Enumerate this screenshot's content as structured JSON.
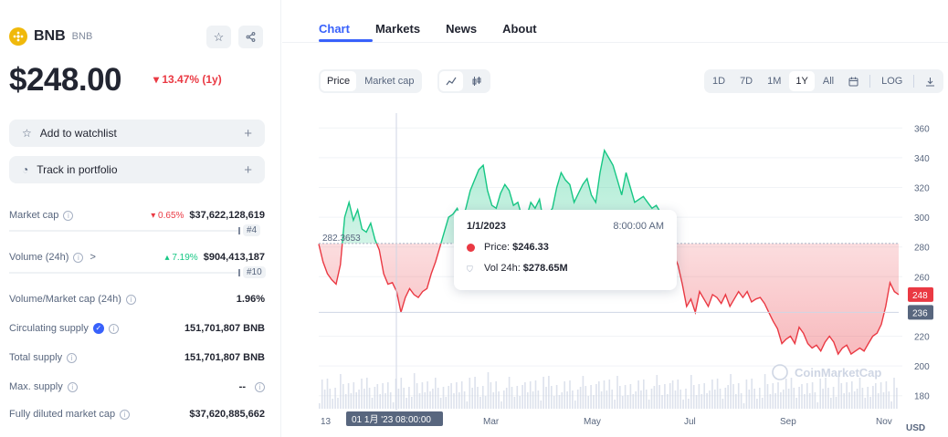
{
  "coin": {
    "name": "BNB",
    "symbol": "BNB",
    "price": "$248.00",
    "change": "▾ 13.47% (1y)"
  },
  "actions": {
    "watchlist": "Add to watchlist",
    "portfolio": "Track in portfolio",
    "plus": "+"
  },
  "stats": {
    "market_cap": {
      "label": "Market cap",
      "change": "▾ 0.65%",
      "value": "$37,622,128,619",
      "rank": "#4"
    },
    "volume": {
      "label": "Volume (24h)",
      "arrow": ">",
      "change": "▴ 7.19%",
      "value": "$904,413,187",
      "rank": "#10"
    },
    "vol_mcap": {
      "label": "Volume/Market cap (24h)",
      "value": "1.96%"
    },
    "circulating": {
      "label": "Circulating supply",
      "value": "151,701,807 BNB"
    },
    "total": {
      "label": "Total supply",
      "value": "151,701,807 BNB"
    },
    "max": {
      "label": "Max. supply",
      "value": "--"
    },
    "fdmc": {
      "label": "Fully diluted market cap",
      "value": "$37,620,885,662"
    }
  },
  "tabs": [
    "Chart",
    "Markets",
    "News",
    "About"
  ],
  "toolbar": {
    "price_btn": "Price",
    "mcap_btn": "Market cap",
    "ranges": [
      "1D",
      "7D",
      "1M",
      "1Y",
      "All"
    ],
    "selected_range": "1Y",
    "log": "LOG"
  },
  "tooltip": {
    "date": "1/1/2023",
    "time": "8:00:00 AM",
    "price_label": "Price:",
    "price": "$246.33",
    "vol_label": "Vol 24h:",
    "vol": "$278.65M"
  },
  "colors": {
    "accent": "#3861fb",
    "up": "#16c784",
    "down": "#ea3943"
  },
  "chart_data": {
    "type": "line",
    "y_ticks": [
      "360",
      "340",
      "320",
      "300",
      "280",
      "260",
      "220",
      "200",
      "180"
    ],
    "x_ticks": [
      "13",
      "Mar",
      "May",
      "Jul",
      "Sep",
      "Nov"
    ],
    "ylim": [
      170,
      370
    ],
    "baseline": 282.3653,
    "baseline_label": "282.3653",
    "current_price_label": "248",
    "current_line_label": "236",
    "current_price": 248,
    "current_line": 236,
    "crosshair_label": "01 1月 '23  08:00:00",
    "currency": "USD",
    "watermark": "CoinMarketCap",
    "series": [
      {
        "values": [
          282,
          270,
          262,
          258,
          255,
          268,
          300,
          310,
          298,
          305,
          292,
          290,
          296,
          285,
          278,
          262,
          255,
          256,
          250,
          236,
          246,
          252,
          248,
          246,
          250,
          252,
          262,
          270,
          280,
          290,
          300,
          302,
          306,
          298,
          306,
          318,
          325,
          332,
          335,
          318,
          308,
          306,
          316,
          322,
          318,
          308,
          310,
          300,
          300,
          310,
          306,
          312,
          296,
          302,
          306,
          320,
          330,
          325,
          322,
          310,
          316,
          322,
          326,
          315,
          310,
          330,
          345,
          340,
          335,
          325,
          315,
          330,
          320,
          310,
          312,
          314,
          310,
          306,
          308,
          303,
          298,
          292,
          275,
          268,
          255,
          240,
          245,
          236,
          250,
          245,
          240,
          248,
          246,
          242,
          248,
          240,
          245,
          250,
          246,
          250,
          243,
          245,
          246,
          242,
          236,
          230,
          225,
          215,
          218,
          220,
          215,
          226,
          222,
          215,
          212,
          214,
          210,
          216,
          220,
          216,
          208,
          212,
          214,
          208,
          210,
          212,
          210,
          215,
          220,
          222,
          228,
          240,
          256,
          250,
          248
        ]
      }
    ]
  }
}
